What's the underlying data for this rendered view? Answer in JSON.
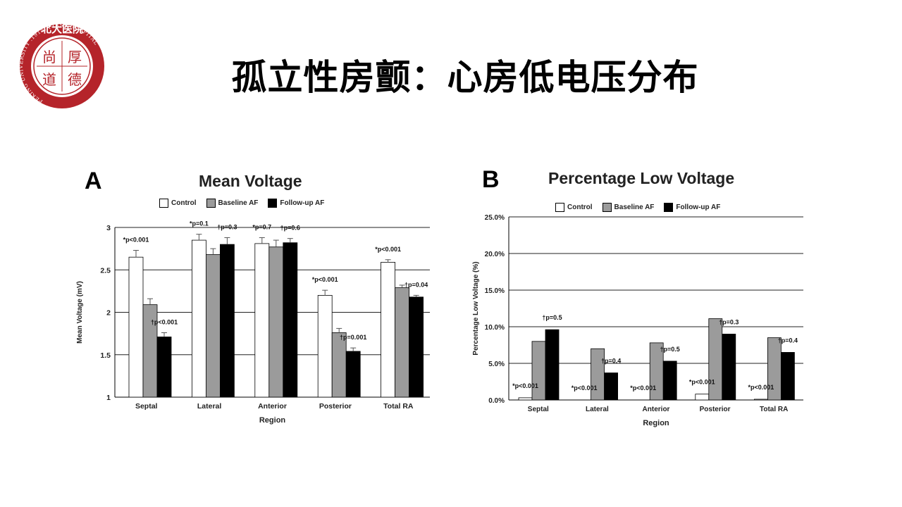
{
  "slide": {
    "title": "孤立性房颤：心房低电压分布",
    "logo": {
      "top_text": "北大医院",
      "center_chars": [
        "尚",
        "厚",
        "道",
        "德"
      ],
      "ring_text": "PEKING UNIVERSITY .1915. FIRST HOSPITAL",
      "color": "#b5242a"
    }
  },
  "colors": {
    "control": "#ffffff",
    "baseline": "#9b9b9b",
    "followup": "#000000",
    "grid": "#222222"
  },
  "chart_data": [
    {
      "type": "bar",
      "panel_label": "A",
      "title": "Mean Voltage",
      "xlabel": "Region",
      "ylabel": "Mean Voltage (mV)",
      "ylim": [
        1,
        3
      ],
      "yticks": [
        "1",
        "1.5",
        "2",
        "2.5",
        "3"
      ],
      "grid": true,
      "legend_position": "top",
      "categories": [
        "Septal",
        "Lateral",
        "Anterior",
        "Posterior",
        "Total RA"
      ],
      "series": [
        {
          "name": "Control",
          "values": [
            2.65,
            2.85,
            2.81,
            2.2,
            2.59
          ],
          "errors": [
            0.08,
            0.07,
            0.07,
            0.06,
            0.03
          ]
        },
        {
          "name": "Baseline AF",
          "values": [
            2.09,
            2.68,
            2.77,
            1.76,
            2.29
          ],
          "errors": [
            0.07,
            0.07,
            0.08,
            0.05,
            0.03
          ]
        },
        {
          "name": "Follow-up AF",
          "values": [
            1.71,
            2.8,
            2.82,
            1.54,
            2.18
          ],
          "errors": [
            0.05,
            0.08,
            0.05,
            0.04,
            0.02
          ]
        }
      ],
      "annotations": [
        {
          "category": 0,
          "series": 0,
          "text": "*p<0.001"
        },
        {
          "category": 0,
          "series": 2,
          "text": "†p<0.001"
        },
        {
          "category": 1,
          "series": 0,
          "text": "*p=0.1"
        },
        {
          "category": 1,
          "series": 2,
          "text": "†p=0.3"
        },
        {
          "category": 2,
          "series": 0,
          "text": "*p=0.7"
        },
        {
          "category": 2,
          "series": 2,
          "text": "†p=0.6"
        },
        {
          "category": 3,
          "series": 0,
          "text": "*p<0.001"
        },
        {
          "category": 3,
          "series": 2,
          "text": "†p=0.001"
        },
        {
          "category": 4,
          "series": 0,
          "text": "*p<0.001"
        },
        {
          "category": 4,
          "series": 2,
          "text": "†p=0.04"
        }
      ]
    },
    {
      "type": "bar",
      "panel_label": "B",
      "title": "Percentage Low Voltage",
      "xlabel": "Region",
      "ylabel": "Percentage Low Voltage (%)",
      "ylim": [
        0,
        25
      ],
      "yticks": [
        "0.0%",
        "5.0%",
        "10.0%",
        "15.0%",
        "20.0%",
        "25.0%"
      ],
      "grid": true,
      "legend_position": "top",
      "categories": [
        "Septal",
        "Lateral",
        "Anterior",
        "Posterior",
        "Total RA"
      ],
      "series": [
        {
          "name": "Control",
          "values": [
            0.3,
            0.0,
            0.0,
            0.8,
            0.1
          ]
        },
        {
          "name": "Baseline AF",
          "values": [
            8.0,
            7.0,
            7.8,
            11.1,
            8.5
          ]
        },
        {
          "name": "Follow-up AF",
          "values": [
            9.6,
            3.7,
            5.3,
            9.0,
            6.5
          ]
        }
      ],
      "annotations": [
        {
          "category": 0,
          "series": 0,
          "text": "*p<0.001"
        },
        {
          "category": 0,
          "series": 2,
          "text": "†p=0.5"
        },
        {
          "category": 1,
          "series": 0,
          "text": "*p<0.001"
        },
        {
          "category": 1,
          "series": 2,
          "text": "†p=0.4"
        },
        {
          "category": 2,
          "series": 0,
          "text": "*p<0.001"
        },
        {
          "category": 2,
          "series": 2,
          "text": "†p=0.5"
        },
        {
          "category": 3,
          "series": 0,
          "text": "*p<0.001"
        },
        {
          "category": 3,
          "series": 2,
          "text": "†p=0.3"
        },
        {
          "category": 4,
          "series": 0,
          "text": "*p<0.001"
        },
        {
          "category": 4,
          "series": 2,
          "text": "†p=0.4"
        }
      ]
    }
  ]
}
